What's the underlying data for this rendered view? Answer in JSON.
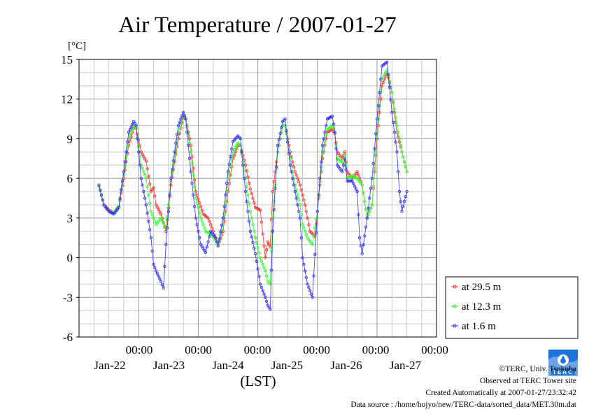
{
  "page": {
    "title": "Air Temperature / 2007-01-27",
    "footer": {
      "copyright": "©TERC, Univ. Tsukuba",
      "observed": "Observed at TERC Tower site",
      "created": "Created Automatically at 2007-01-27/23:32:42",
      "source": "Data source : /home/hojyo/new/TERC-data/sorted_data/MET.30m.dat"
    },
    "logo_text": "TERC"
  },
  "colors": {
    "s29": "#ff3030",
    "s12": "#30ff30",
    "s1": "#3030ff",
    "grid": "#999999",
    "minor": "#c8c8c8"
  },
  "chart_data": {
    "type": "line",
    "title": "Air Temperature / 2007-01-27",
    "y_unit": "[°C]",
    "xlabel": "(LST)",
    "ylim": [
      -6,
      15
    ],
    "yticks": [
      -6,
      -3,
      0,
      3,
      6,
      9,
      12,
      15
    ],
    "xlim_hours": [
      0,
      144
    ],
    "x_time_label": "00:00",
    "x_day_labels": [
      "Jan-22",
      "Jan-23",
      "Jan-24",
      "Jan-25",
      "Jan-26",
      "Jan-27"
    ],
    "grid": true,
    "legend_position": "right-bottom",
    "series": [
      {
        "name": "at 29.5 m",
        "color_key": "s29",
        "points": [
          [
            0,
            5.4
          ],
          [
            2,
            4.0
          ],
          [
            4,
            3.6
          ],
          [
            6,
            3.4
          ],
          [
            8,
            3.8
          ],
          [
            10,
            6.0
          ],
          [
            12,
            8.5
          ],
          [
            14,
            9.8
          ],
          [
            15,
            9.8
          ],
          [
            17,
            8.0
          ],
          [
            19,
            7.3
          ],
          [
            21,
            5.0
          ],
          [
            22,
            5.3
          ],
          [
            23,
            4.0
          ],
          [
            25,
            3.3
          ],
          [
            27,
            2.0
          ],
          [
            29,
            5.5
          ],
          [
            32,
            9.0
          ],
          [
            34,
            10.6
          ],
          [
            35,
            10.5
          ],
          [
            37,
            8.5
          ],
          [
            39,
            5.0
          ],
          [
            42,
            3.3
          ],
          [
            44,
            3.0
          ],
          [
            46,
            2.0
          ],
          [
            48,
            0.9
          ],
          [
            50,
            2.0
          ],
          [
            52,
            5.0
          ],
          [
            54,
            7.5
          ],
          [
            56,
            8.5
          ],
          [
            57,
            8.5
          ],
          [
            59,
            7.0
          ],
          [
            61,
            5.2
          ],
          [
            63,
            3.8
          ],
          [
            65,
            3.6
          ],
          [
            67,
            0.0
          ],
          [
            68,
            1.2
          ],
          [
            69,
            0.8
          ],
          [
            70,
            5.0
          ],
          [
            72,
            8.0
          ],
          [
            74,
            10.0
          ],
          [
            75,
            10.0
          ],
          [
            77,
            8.0
          ],
          [
            79,
            6.5
          ],
          [
            81,
            5.5
          ],
          [
            83,
            4.0
          ],
          [
            85,
            2.0
          ],
          [
            87,
            1.6
          ],
          [
            88,
            3.5
          ],
          [
            90,
            7.5
          ],
          [
            92,
            9.5
          ],
          [
            94,
            9.7
          ],
          [
            95,
            9.4
          ],
          [
            96,
            8.0
          ],
          [
            98,
            7.5
          ],
          [
            99,
            8.0
          ],
          [
            100,
            6.5
          ],
          [
            102,
            6.0
          ],
          [
            104,
            6.5
          ],
          [
            106,
            5.5
          ],
          [
            108,
            3.0
          ],
          [
            110,
            4.0
          ],
          [
            112,
            9.0
          ],
          [
            114,
            13.0
          ],
          [
            116,
            14.0
          ],
          [
            118,
            12.5
          ],
          [
            120,
            9.5
          ],
          [
            122,
            8.0
          ],
          [
            124,
            6.5
          ]
        ]
      },
      {
        "name": "at 12.3 m",
        "color_key": "s12",
        "points": [
          [
            0,
            5.4
          ],
          [
            2,
            4.0
          ],
          [
            4,
            3.5
          ],
          [
            6,
            3.4
          ],
          [
            8,
            3.9
          ],
          [
            10,
            6.3
          ],
          [
            12,
            9.0
          ],
          [
            14,
            10.0
          ],
          [
            15,
            9.8
          ],
          [
            17,
            7.0
          ],
          [
            19,
            6.0
          ],
          [
            21,
            3.5
          ],
          [
            23,
            2.5
          ],
          [
            25,
            3.0
          ],
          [
            27,
            2.2
          ],
          [
            29,
            5.8
          ],
          [
            32,
            9.5
          ],
          [
            34,
            10.8
          ],
          [
            35,
            10.5
          ],
          [
            37,
            8.0
          ],
          [
            39,
            4.5
          ],
          [
            41,
            3.0
          ],
          [
            43,
            2.0
          ],
          [
            45,
            1.8
          ],
          [
            47,
            1.3
          ],
          [
            48,
            0.9
          ],
          [
            50,
            2.5
          ],
          [
            52,
            5.8
          ],
          [
            54,
            8.0
          ],
          [
            56,
            8.7
          ],
          [
            57,
            8.5
          ],
          [
            59,
            6.0
          ],
          [
            61,
            3.5
          ],
          [
            63,
            1.5
          ],
          [
            65,
            0.0
          ],
          [
            67,
            -1.0
          ],
          [
            68,
            -1.8
          ],
          [
            69,
            -2.0
          ],
          [
            70,
            3.0
          ],
          [
            72,
            8.0
          ],
          [
            74,
            10.0
          ],
          [
            75,
            10.0
          ],
          [
            77,
            7.5
          ],
          [
            79,
            5.5
          ],
          [
            81,
            4.0
          ],
          [
            82,
            2.5
          ],
          [
            84,
            1.5
          ],
          [
            86,
            1.0
          ],
          [
            88,
            3.5
          ],
          [
            90,
            8.0
          ],
          [
            92,
            9.7
          ],
          [
            94,
            10.0
          ],
          [
            95,
            9.5
          ],
          [
            96,
            7.5
          ],
          [
            98,
            7.2
          ],
          [
            99,
            7.8
          ],
          [
            100,
            6.0
          ],
          [
            102,
            6.2
          ],
          [
            104,
            6.0
          ],
          [
            106,
            5.5
          ],
          [
            108,
            3.0
          ],
          [
            110,
            4.0
          ],
          [
            112,
            9.5
          ],
          [
            114,
            13.5
          ],
          [
            116,
            14.2
          ],
          [
            118,
            12.5
          ],
          [
            120,
            10.0
          ],
          [
            122,
            8.0
          ],
          [
            124,
            6.5
          ]
        ]
      },
      {
        "name": "at 1.6 m",
        "color_key": "s1",
        "points": [
          [
            0,
            5.5
          ],
          [
            2,
            4.0
          ],
          [
            4,
            3.5
          ],
          [
            6,
            3.3
          ],
          [
            8,
            3.8
          ],
          [
            10,
            6.5
          ],
          [
            12,
            9.5
          ],
          [
            14,
            10.3
          ],
          [
            15,
            10.0
          ],
          [
            17,
            6.0
          ],
          [
            19,
            4.0
          ],
          [
            21,
            1.5
          ],
          [
            22,
            -0.5
          ],
          [
            23,
            -1.0
          ],
          [
            25,
            -1.8
          ],
          [
            26,
            -2.3
          ],
          [
            27,
            1.0
          ],
          [
            29,
            6.0
          ],
          [
            32,
            10.0
          ],
          [
            34,
            11.0
          ],
          [
            35,
            10.5
          ],
          [
            37,
            6.5
          ],
          [
            39,
            3.0
          ],
          [
            41,
            1.0
          ],
          [
            43,
            0.4
          ],
          [
            45,
            2.0
          ],
          [
            47,
            1.5
          ],
          [
            48,
            0.9
          ],
          [
            50,
            3.0
          ],
          [
            52,
            6.5
          ],
          [
            54,
            8.8
          ],
          [
            56,
            9.2
          ],
          [
            57,
            9.0
          ],
          [
            59,
            5.0
          ],
          [
            61,
            2.0
          ],
          [
            63,
            0.3
          ],
          [
            65,
            -2.0
          ],
          [
            67,
            -3.0
          ],
          [
            68,
            -3.6
          ],
          [
            69,
            -3.9
          ],
          [
            70,
            2.0
          ],
          [
            72,
            8.5
          ],
          [
            74,
            10.3
          ],
          [
            75,
            10.5
          ],
          [
            77,
            7.0
          ],
          [
            79,
            5.0
          ],
          [
            81,
            3.0
          ],
          [
            82,
            0.0
          ],
          [
            84,
            -2.0
          ],
          [
            86,
            -3.0
          ],
          [
            88,
            3.5
          ],
          [
            90,
            8.5
          ],
          [
            92,
            10.5
          ],
          [
            94,
            10.7
          ],
          [
            95,
            9.5
          ],
          [
            96,
            7.0
          ],
          [
            98,
            6.5
          ],
          [
            99,
            7.5
          ],
          [
            100,
            5.8
          ],
          [
            102,
            5.8
          ],
          [
            104,
            5.0
          ],
          [
            105,
            1.5
          ],
          [
            106,
            0.3
          ],
          [
            108,
            3.0
          ],
          [
            110,
            6.0
          ],
          [
            112,
            10.5
          ],
          [
            114,
            14.5
          ],
          [
            116,
            14.8
          ],
          [
            118,
            11.0
          ],
          [
            120,
            8.0
          ],
          [
            121,
            5.0
          ],
          [
            122,
            3.5
          ],
          [
            124,
            5.0
          ]
        ]
      }
    ]
  }
}
